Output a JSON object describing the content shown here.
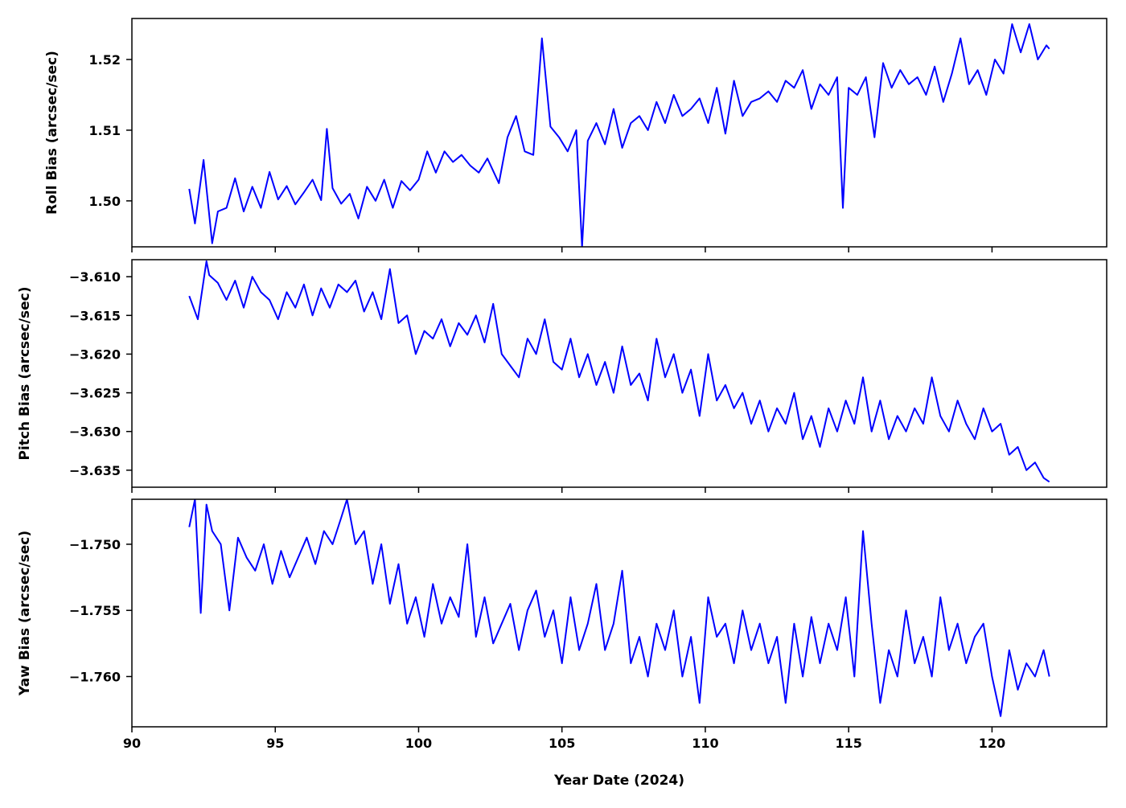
{
  "chart_data": [
    {
      "type": "line",
      "id": "roll",
      "ylabel": "Roll Bias (arcsec/sec)",
      "xlim": [
        90,
        124
      ],
      "ylim": [
        1.4935,
        1.5258
      ],
      "yticks": [
        1.5,
        1.51,
        1.52
      ],
      "ytick_labels": [
        "1.50",
        "1.51",
        "1.52"
      ],
      "color": "#0000ff",
      "series": [
        {
          "x": [
            92.0,
            92.2,
            92.5,
            92.8,
            93.0,
            93.3,
            93.6,
            93.9,
            94.2,
            94.5,
            94.8,
            95.1,
            95.4,
            95.7,
            96.0,
            96.3,
            96.6,
            96.8,
            97.0,
            97.3,
            97.6,
            97.9,
            98.2,
            98.5,
            98.8,
            99.1,
            99.4,
            99.7,
            100.0,
            100.3,
            100.6,
            100.9,
            101.2,
            101.5,
            101.8,
            102.1,
            102.4,
            102.8,
            103.1,
            103.4,
            103.7,
            104.0,
            104.3,
            104.6,
            104.9,
            105.2,
            105.5,
            105.7,
            105.9,
            106.2,
            106.5,
            106.8,
            107.1,
            107.4,
            107.7,
            108.0,
            108.3,
            108.6,
            108.9,
            109.2,
            109.5,
            109.8,
            110.1,
            110.4,
            110.7,
            111.0,
            111.3,
            111.6,
            111.9,
            112.2,
            112.5,
            112.8,
            113.1,
            113.4,
            113.7,
            114.0,
            114.3,
            114.6,
            114.8,
            115.0,
            115.3,
            115.6,
            115.9,
            116.2,
            116.5,
            116.8,
            117.1,
            117.4,
            117.7,
            118.0,
            118.3,
            118.6,
            118.9,
            119.2,
            119.5,
            119.8,
            120.1,
            120.4,
            120.7,
            121.0,
            121.3,
            121.6,
            121.9,
            122.0
          ],
          "y": [
            1.5017,
            1.4968,
            1.5058,
            1.494,
            1.4985,
            1.499,
            1.5032,
            1.4985,
            1.502,
            1.499,
            1.5041,
            1.5002,
            1.5021,
            1.4995,
            1.5012,
            1.503,
            1.5001,
            1.5102,
            1.5018,
            1.4996,
            1.501,
            1.4975,
            1.502,
            1.5,
            1.503,
            1.499,
            1.5028,
            1.5015,
            1.503,
            1.507,
            1.504,
            1.507,
            1.5055,
            1.5065,
            1.505,
            1.504,
            1.506,
            1.5025,
            1.509,
            1.512,
            1.507,
            1.5065,
            1.523,
            1.5105,
            1.509,
            1.507,
            1.51,
            1.4935,
            1.5085,
            1.511,
            1.508,
            1.513,
            1.5075,
            1.511,
            1.512,
            1.51,
            1.514,
            1.511,
            1.515,
            1.512,
            1.513,
            1.5145,
            1.511,
            1.516,
            1.5095,
            1.517,
            1.512,
            1.514,
            1.5145,
            1.5155,
            1.514,
            1.517,
            1.516,
            1.5185,
            1.513,
            1.5165,
            1.515,
            1.5175,
            1.499,
            1.516,
            1.515,
            1.5175,
            1.509,
            1.5195,
            1.516,
            1.5185,
            1.5165,
            1.5175,
            1.515,
            1.519,
            1.514,
            1.518,
            1.523,
            1.5165,
            1.5185,
            1.515,
            1.52,
            1.518,
            1.525,
            1.521,
            1.525,
            1.52,
            1.522,
            1.5215
          ]
        }
      ]
    },
    {
      "type": "line",
      "id": "pitch",
      "ylabel": "Pitch Bias (arcsec/sec)",
      "xlim": [
        90,
        124
      ],
      "ylim": [
        -3.6372,
        -3.6078
      ],
      "yticks": [
        -3.61,
        -3.615,
        -3.62,
        -3.625,
        -3.63,
        -3.635
      ],
      "ytick_labels": [
        "−3.610",
        "−3.615",
        "−3.620",
        "−3.625",
        "−3.630",
        "−3.635"
      ],
      "color": "#0000ff",
      "series": [
        {
          "x": [
            92.0,
            92.3,
            92.6,
            92.7,
            93.0,
            93.3,
            93.6,
            93.9,
            94.2,
            94.5,
            94.8,
            95.1,
            95.4,
            95.7,
            96.0,
            96.3,
            96.6,
            96.9,
            97.2,
            97.5,
            97.8,
            98.1,
            98.4,
            98.7,
            99.0,
            99.3,
            99.6,
            99.9,
            100.2,
            100.5,
            100.8,
            101.1,
            101.4,
            101.7,
            102.0,
            102.3,
            102.6,
            102.9,
            103.2,
            103.5,
            103.8,
            104.1,
            104.4,
            104.7,
            105.0,
            105.3,
            105.6,
            105.9,
            106.2,
            106.5,
            106.8,
            107.1,
            107.4,
            107.7,
            108.0,
            108.3,
            108.6,
            108.9,
            109.2,
            109.5,
            109.8,
            110.1,
            110.4,
            110.7,
            111.0,
            111.3,
            111.6,
            111.9,
            112.2,
            112.5,
            112.8,
            113.1,
            113.4,
            113.7,
            114.0,
            114.3,
            114.6,
            114.9,
            115.2,
            115.5,
            115.8,
            116.1,
            116.4,
            116.7,
            117.0,
            117.3,
            117.6,
            117.9,
            118.2,
            118.5,
            118.8,
            119.1,
            119.4,
            119.7,
            120.0,
            120.3,
            120.6,
            120.9,
            121.2,
            121.5,
            121.8,
            122.0
          ],
          "y": [
            -3.6125,
            -3.6155,
            -3.608,
            -3.6098,
            -3.6108,
            -3.613,
            -3.6105,
            -3.614,
            -3.61,
            -3.612,
            -3.613,
            -3.6155,
            -3.612,
            -3.614,
            -3.611,
            -3.615,
            -3.6115,
            -3.614,
            -3.611,
            -3.612,
            -3.6105,
            -3.6145,
            -3.612,
            -3.6155,
            -3.609,
            -3.616,
            -3.615,
            -3.62,
            -3.617,
            -3.618,
            -3.6155,
            -3.619,
            -3.616,
            -3.6175,
            -3.615,
            -3.6185,
            -3.6135,
            -3.62,
            -3.6215,
            -3.623,
            -3.618,
            -3.62,
            -3.6155,
            -3.621,
            -3.622,
            -3.618,
            -3.623,
            -3.62,
            -3.624,
            -3.621,
            -3.625,
            -3.619,
            -3.624,
            -3.6225,
            -3.626,
            -3.618,
            -3.623,
            -3.62,
            -3.625,
            -3.622,
            -3.628,
            -3.62,
            -3.626,
            -3.624,
            -3.627,
            -3.625,
            -3.629,
            -3.626,
            -3.63,
            -3.627,
            -3.629,
            -3.625,
            -3.631,
            -3.628,
            -3.632,
            -3.627,
            -3.63,
            -3.626,
            -3.629,
            -3.623,
            -3.63,
            -3.626,
            -3.631,
            -3.628,
            -3.63,
            -3.627,
            -3.629,
            -3.623,
            -3.628,
            -3.63,
            -3.626,
            -3.629,
            -3.631,
            -3.627,
            -3.63,
            -3.629,
            -3.633,
            -3.632,
            -3.635,
            -3.634,
            -3.636,
            -3.6365
          ]
        }
      ]
    },
    {
      "type": "line",
      "id": "yaw",
      "ylabel": "Yaw Bias (arcsec/sec)",
      "xlim": [
        90,
        124
      ],
      "ylim": [
        -1.7638,
        -1.7466
      ],
      "yticks": [
        -1.75,
        -1.755,
        -1.76
      ],
      "ytick_labels": [
        "−1.750",
        "−1.755",
        "−1.760"
      ],
      "color": "#0000ff",
      "series": [
        {
          "x": [
            92.0,
            92.2,
            92.4,
            92.6,
            92.8,
            93.1,
            93.4,
            93.7,
            94.0,
            94.3,
            94.6,
            94.9,
            95.2,
            95.5,
            95.8,
            96.1,
            96.4,
            96.7,
            97.0,
            97.3,
            97.5,
            97.8,
            98.1,
            98.4,
            98.7,
            99.0,
            99.3,
            99.6,
            99.9,
            100.2,
            100.5,
            100.8,
            101.1,
            101.4,
            101.7,
            102.0,
            102.3,
            102.6,
            102.9,
            103.2,
            103.5,
            103.8,
            104.1,
            104.4,
            104.7,
            105.0,
            105.3,
            105.6,
            105.9,
            106.2,
            106.5,
            106.8,
            107.1,
            107.4,
            107.7,
            108.0,
            108.3,
            108.6,
            108.9,
            109.2,
            109.5,
            109.8,
            110.1,
            110.4,
            110.7,
            111.0,
            111.3,
            111.6,
            111.9,
            112.2,
            112.5,
            112.8,
            113.1,
            113.4,
            113.7,
            114.0,
            114.3,
            114.6,
            114.9,
            115.2,
            115.5,
            115.8,
            116.1,
            116.4,
            116.7,
            117.0,
            117.3,
            117.6,
            117.9,
            118.2,
            118.5,
            118.8,
            119.1,
            119.4,
            119.7,
            120.0,
            120.3,
            120.6,
            120.9,
            121.2,
            121.5,
            121.8,
            122.0
          ],
          "y": [
            -1.7487,
            -1.7466,
            -1.7552,
            -1.747,
            -1.749,
            -1.75,
            -1.755,
            -1.7495,
            -1.751,
            -1.752,
            -1.75,
            -1.753,
            -1.7505,
            -1.7525,
            -1.751,
            -1.7495,
            -1.7515,
            -1.749,
            -1.75,
            -1.748,
            -1.7466,
            -1.75,
            -1.749,
            -1.753,
            -1.75,
            -1.7545,
            -1.7515,
            -1.756,
            -1.754,
            -1.757,
            -1.753,
            -1.756,
            -1.754,
            -1.7555,
            -1.75,
            -1.757,
            -1.754,
            -1.7575,
            -1.756,
            -1.7545,
            -1.758,
            -1.755,
            -1.7535,
            -1.757,
            -1.755,
            -1.759,
            -1.754,
            -1.758,
            -1.756,
            -1.753,
            -1.758,
            -1.756,
            -1.752,
            -1.759,
            -1.757,
            -1.76,
            -1.756,
            -1.758,
            -1.755,
            -1.76,
            -1.757,
            -1.762,
            -1.754,
            -1.757,
            -1.756,
            -1.759,
            -1.755,
            -1.758,
            -1.756,
            -1.759,
            -1.757,
            -1.762,
            -1.756,
            -1.76,
            -1.7555,
            -1.759,
            -1.756,
            -1.758,
            -1.754,
            -1.76,
            -1.749,
            -1.756,
            -1.762,
            -1.758,
            -1.76,
            -1.755,
            -1.759,
            -1.757,
            -1.76,
            -1.754,
            -1.758,
            -1.756,
            -1.759,
            -1.757,
            -1.756,
            -1.76,
            -1.763,
            -1.758,
            -1.761,
            -1.759,
            -1.76,
            -1.758,
            -1.76
          ]
        }
      ]
    }
  ],
  "xaxis": {
    "label": "Year Date (2024)",
    "ticks": [
      90,
      95,
      100,
      105,
      110,
      115,
      120
    ],
    "tick_labels": [
      "90",
      "95",
      "100",
      "105",
      "110",
      "115",
      "120"
    ]
  }
}
